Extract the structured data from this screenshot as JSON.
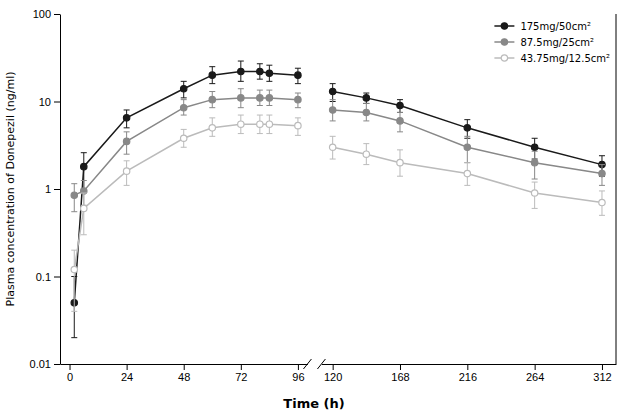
{
  "chart_data": [
    {
      "type": "line",
      "ylabel": "Plasma concentration of Donepezil (ng/ml)",
      "xlabel": "Time (h)",
      "log": "y",
      "x": [
        2,
        6,
        24,
        48,
        60,
        72,
        80,
        84,
        96
      ],
      "xlim": [
        -4,
        100
      ],
      "xticks": [
        0,
        24,
        48,
        72,
        96
      ],
      "ylim": [
        0.01,
        100
      ],
      "yticks": [
        0.01,
        0.1,
        1,
        10,
        100
      ],
      "series": [
        {
          "color": "#1a1a1a",
          "marker": "circle",
          "values": [
            0.05,
            1.8,
            6.5,
            14.0,
            20.0,
            22.0,
            22.0,
            21.0,
            20.0
          ],
          "error_low": [
            0.03,
            0.8,
            1.5,
            3.0,
            4.0,
            5.0,
            4.0,
            4.0,
            4.0
          ],
          "error_high": [
            0.05,
            0.8,
            1.5,
            3.0,
            5.0,
            7.0,
            5.0,
            5.0,
            4.0
          ]
        },
        {
          "color": "#888888",
          "marker": "circle",
          "values": [
            0.85,
            0.95,
            3.5,
            8.5,
            10.5,
            11.0,
            11.0,
            11.0,
            10.5
          ],
          "error_low": [
            0.3,
            0.3,
            1.0,
            1.5,
            2.0,
            2.5,
            2.0,
            2.0,
            2.0
          ],
          "error_high": [
            0.3,
            0.3,
            1.0,
            2.0,
            2.5,
            3.0,
            2.5,
            2.5,
            2.0
          ]
        },
        {
          "color": "#bbbbbb",
          "marker": "open-circle",
          "values": [
            0.12,
            0.6,
            1.6,
            3.8,
            5.0,
            5.5,
            5.5,
            5.5,
            5.3
          ],
          "error_low": [
            0.08,
            0.3,
            0.5,
            0.8,
            1.0,
            1.2,
            1.2,
            1.2,
            1.2
          ],
          "error_high": [
            0.08,
            0.3,
            0.5,
            1.0,
            1.5,
            1.5,
            1.5,
            1.5,
            1.2
          ]
        }
      ]
    },
    {
      "type": "line",
      "log": "y",
      "tick_labels": "x",
      "legend": "upper right",
      "x": [
        120,
        144,
        168,
        216,
        264,
        312
      ],
      "xlim": [
        112,
        322
      ],
      "xticks": [
        120,
        168,
        216,
        264,
        312
      ],
      "ylim": [
        0.01,
        100
      ],
      "series": [
        {
          "name": "175mg/50cm²",
          "color": "#1a1a1a",
          "marker": "circle",
          "values": [
            13.0,
            11.0,
            9.0,
            5.0,
            3.0,
            1.9
          ],
          "error_low": [
            3.0,
            1.5,
            1.5,
            1.2,
            0.8,
            0.5
          ],
          "error_high": [
            3.0,
            1.5,
            1.5,
            1.2,
            0.8,
            0.5
          ]
        },
        {
          "name": "87.5mg/25cm²",
          "color": "#888888",
          "marker": "circle",
          "values": [
            8.0,
            7.5,
            6.0,
            3.0,
            2.0,
            1.5
          ],
          "error_low": [
            2.0,
            1.5,
            1.5,
            1.0,
            0.7,
            0.4
          ],
          "error_high": [
            2.5,
            2.0,
            1.5,
            1.0,
            0.7,
            0.4
          ]
        },
        {
          "name": "43.75mg/12.5cm²",
          "color": "#bbbbbb",
          "marker": "open-circle",
          "values": [
            3.0,
            2.5,
            2.0,
            1.5,
            0.9,
            0.7
          ],
          "error_low": [
            0.8,
            0.6,
            0.6,
            0.4,
            0.3,
            0.2
          ],
          "error_high": [
            1.0,
            0.8,
            0.8,
            0.5,
            0.3,
            0.25
          ]
        }
      ]
    }
  ]
}
